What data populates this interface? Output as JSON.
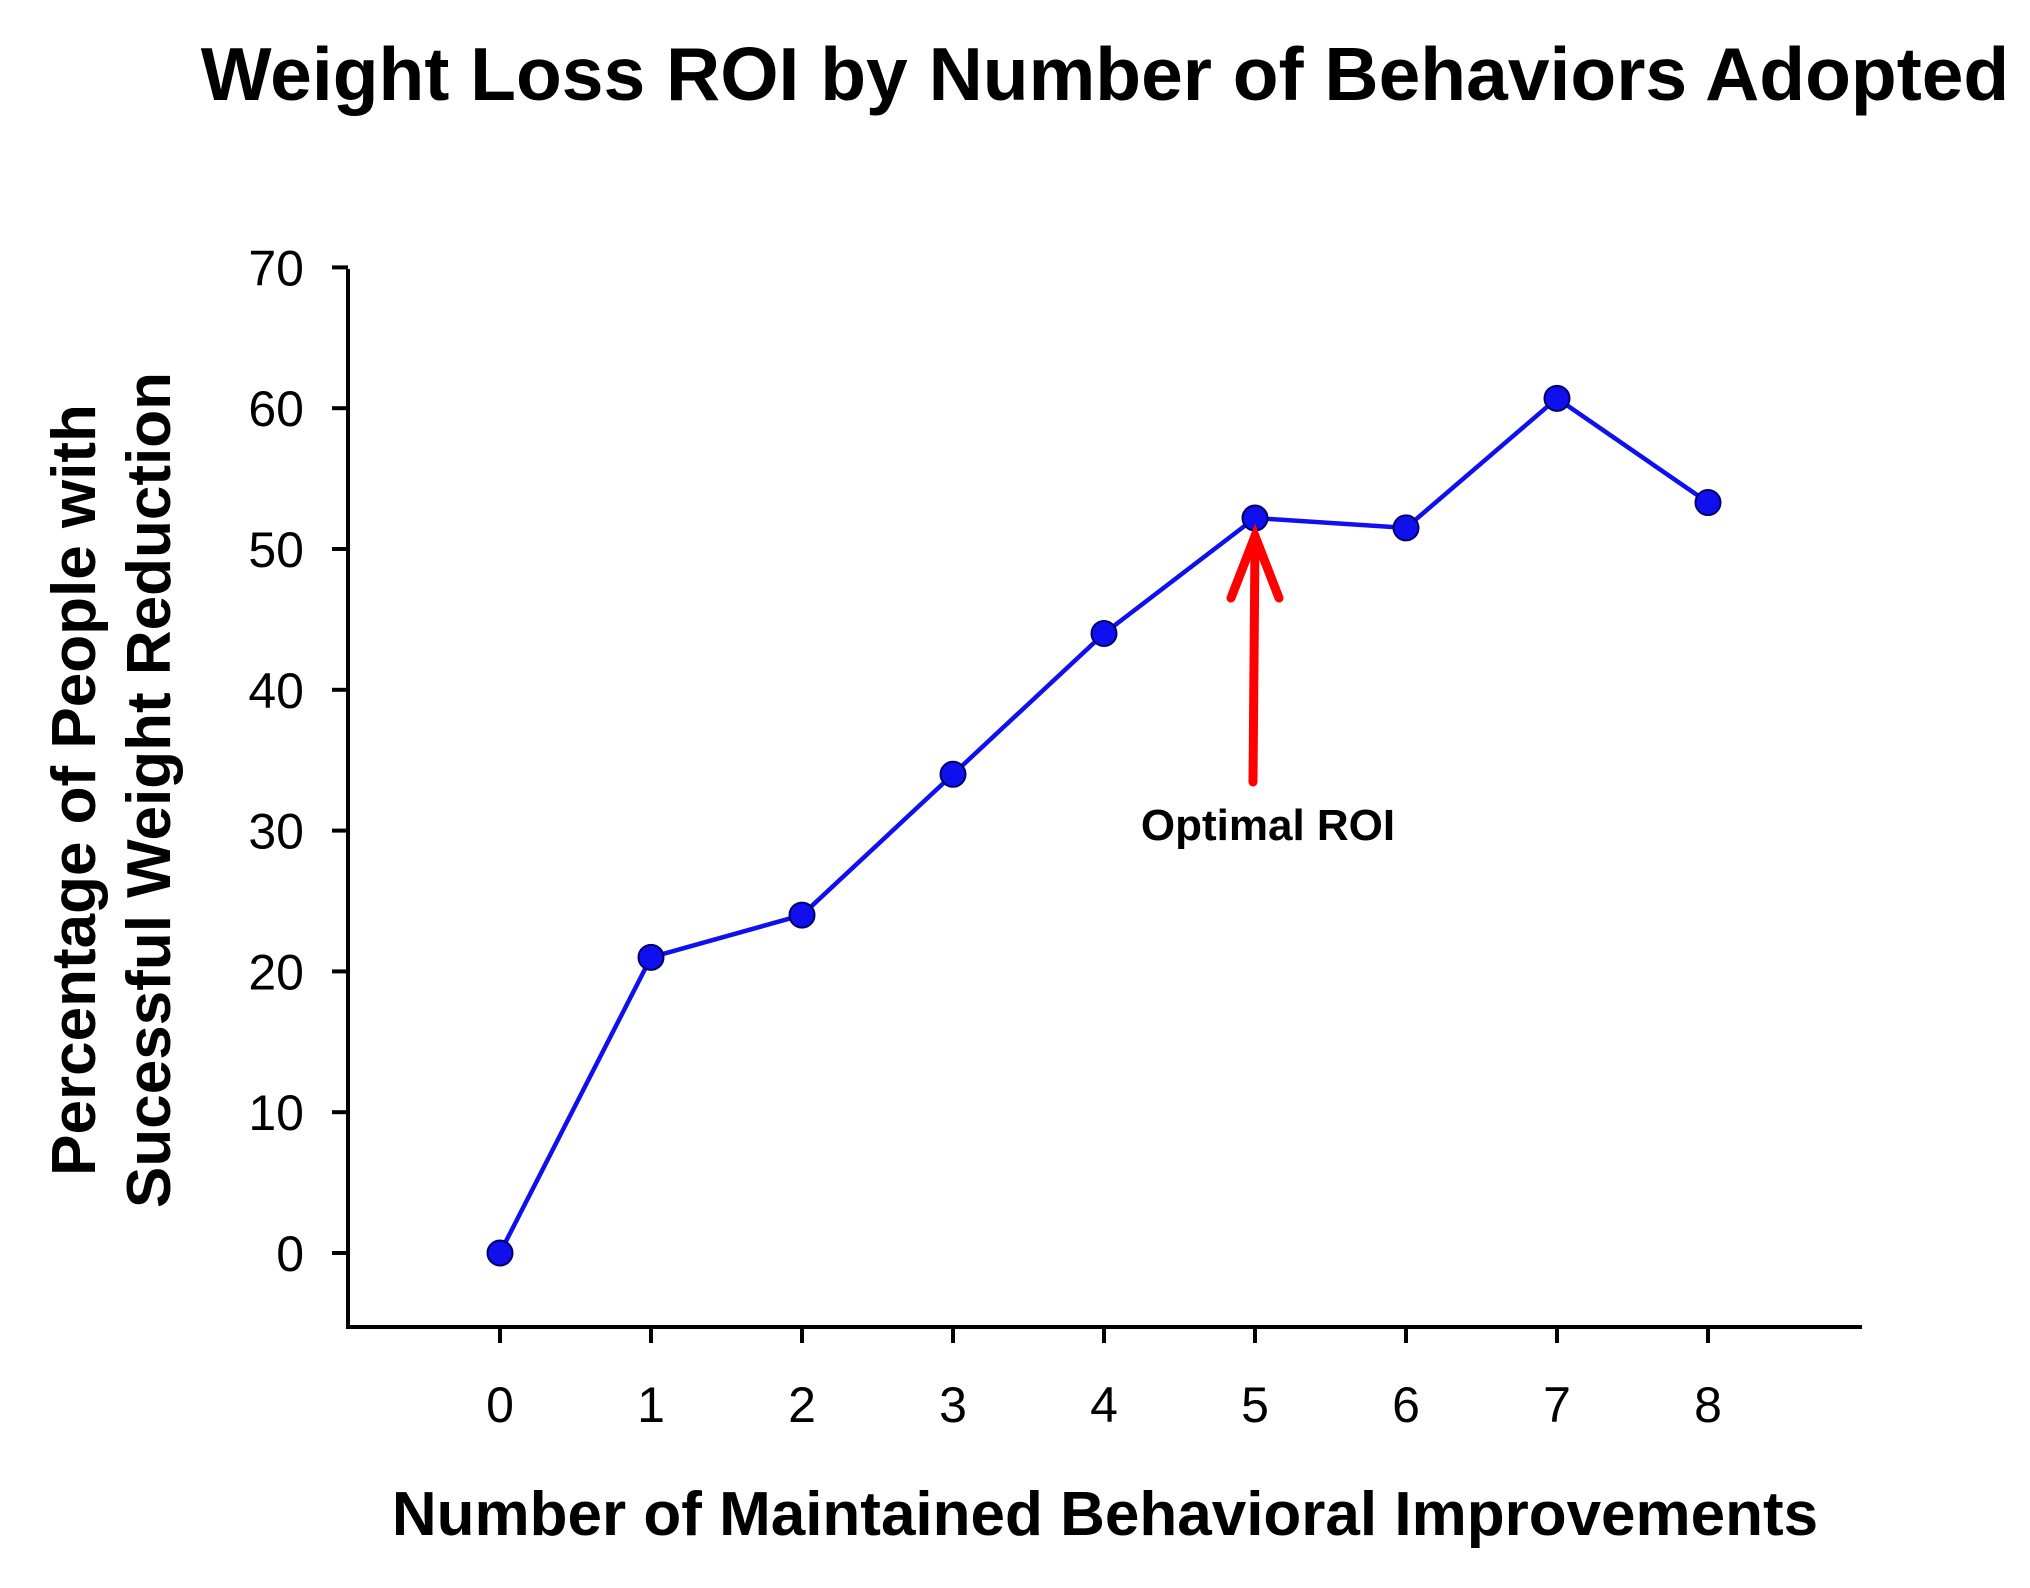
{
  "chart_data": {
    "type": "line",
    "title": "Weight Loss ROI by Number of Behaviors Adopted",
    "xlabel": "Number of Maintained Behavioral Improvements",
    "ylabel_lines": [
      "Percentage of People with",
      "Sucessful Weight Reduction"
    ],
    "x": [
      0,
      1,
      2,
      3,
      4,
      5,
      6,
      7,
      8
    ],
    "series": [
      {
        "values": [
          0,
          21,
          24,
          34,
          44,
          52.2,
          51.5,
          60.7,
          53.3
        ]
      }
    ],
    "xticks": [
      0,
      1,
      2,
      3,
      4,
      5,
      6,
      7,
      8
    ],
    "yticks": [
      0,
      10,
      20,
      30,
      40,
      50,
      60,
      70
    ],
    "xlim": [
      -1,
      9
    ],
    "ylim": [
      -5,
      70
    ],
    "grid": false,
    "line_color": "#1010ee",
    "marker_color": "#1010ee",
    "annotation": {
      "text": "Optimal ROI",
      "target_x": 5,
      "target_y": 52.2,
      "color": "#ff0000"
    }
  }
}
